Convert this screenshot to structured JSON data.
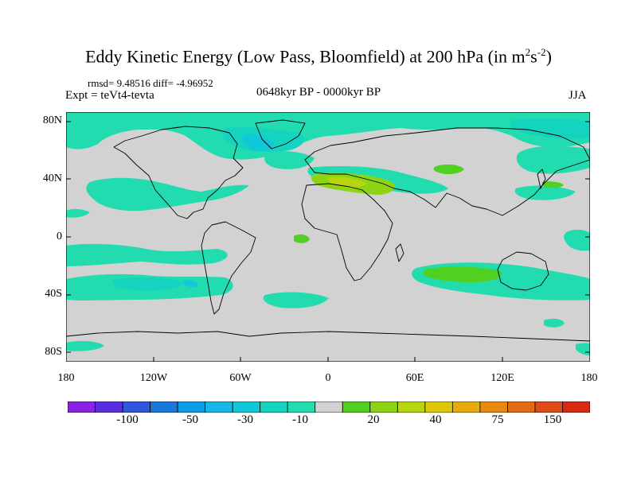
{
  "title": "Eddy Kinetic Energy (Low Pass, Bloomfield) at 200 hPa (in m",
  "title_exp1": "2",
  "title_s": "s",
  "title_exp2": "-2",
  "title_close": ")",
  "stats": "rmsd= 9.48516 diff= -4.96952",
  "expt": "Expt = teVt4-tevta",
  "period": "0648kyr BP - 0000kyr BP",
  "season": "JJA",
  "lat_labels": [
    "80N",
    "40N",
    "0",
    "40S",
    "80S"
  ],
  "lon_labels": [
    "180",
    "120W",
    "60W",
    "0",
    "60E",
    "120E",
    "180"
  ],
  "colorbar": {
    "labels": [
      "-100",
      "-50",
      "-30",
      "-10",
      "20",
      "40",
      "75",
      "150"
    ],
    "colors": [
      "#8a22e6",
      "#5a2de0",
      "#3056e0",
      "#1878dc",
      "#0f9ce6",
      "#16b7e6",
      "#10c8d8",
      "#14d4c0",
      "#22dcb0",
      "#d2d2d2",
      "#50d020",
      "#8cd414",
      "#b8d410",
      "#dcc808",
      "#e6aa0a",
      "#e88a10",
      "#e46a14",
      "#e04a16",
      "#d82a10"
    ]
  },
  "colors": {
    "land_bg": "#d2d2d2",
    "neg_light": "#22dcb0",
    "neg_mid": "#14d4c0",
    "neg_strong": "#10c8d8",
    "pos_light": "#50d020",
    "pos_mid": "#8cd414",
    "coast": "#000000"
  }
}
